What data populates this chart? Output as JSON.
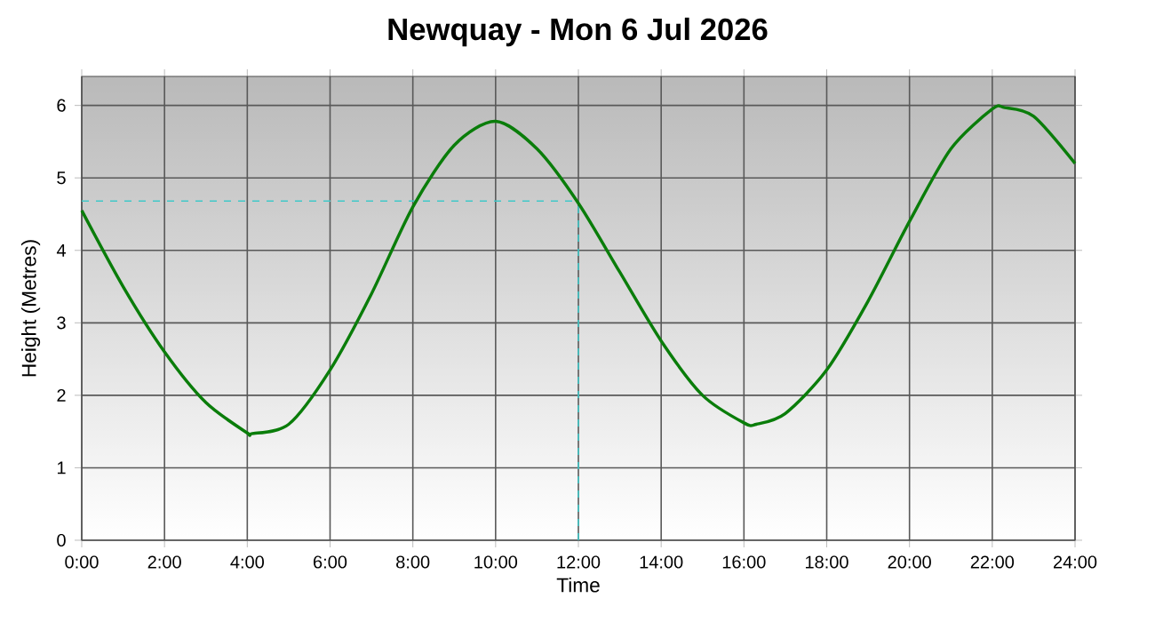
{
  "chart_data": {
    "type": "line",
    "title": "Newquay - Mon 6 Jul 2026",
    "xlabel": "Time",
    "ylabel": "Height (Metres)",
    "x": [
      0,
      1,
      2,
      3,
      4,
      4.1,
      5,
      6,
      7,
      8,
      9,
      10,
      11,
      12,
      13,
      14,
      15,
      16,
      16.3,
      17,
      18,
      19,
      20,
      21,
      22,
      22.3,
      23,
      24
    ],
    "series": [
      {
        "color": "#0a7d0a",
        "values": [
          4.55,
          3.5,
          2.6,
          1.9,
          1.48,
          1.47,
          1.6,
          2.35,
          3.4,
          4.6,
          5.45,
          5.78,
          5.4,
          4.65,
          3.7,
          2.75,
          2.0,
          1.62,
          1.6,
          1.75,
          2.35,
          3.3,
          4.4,
          5.4,
          5.95,
          5.97,
          5.85,
          5.2
        ]
      }
    ],
    "xlim": [
      0,
      24
    ],
    "ylim": [
      0,
      6.4
    ],
    "xticks": [
      {
        "value": 0,
        "label": "0:00"
      },
      {
        "value": 2,
        "label": "2:00"
      },
      {
        "value": 4,
        "label": "4:00"
      },
      {
        "value": 6,
        "label": "6:00"
      },
      {
        "value": 8,
        "label": "8:00"
      },
      {
        "value": 10,
        "label": "10:00"
      },
      {
        "value": 12,
        "label": "12:00"
      },
      {
        "value": 14,
        "label": "14:00"
      },
      {
        "value": 16,
        "label": "16:00"
      },
      {
        "value": 18,
        "label": "18:00"
      },
      {
        "value": 20,
        "label": "20:00"
      },
      {
        "value": 22,
        "label": "22:00"
      },
      {
        "value": 24,
        "label": "24:00"
      }
    ],
    "yticks": [
      0,
      1,
      2,
      3,
      4,
      5,
      6
    ],
    "ref_lines": [
      {
        "axis": "x",
        "value": 12,
        "color": "#40c8c8",
        "line_style": "dashed"
      },
      {
        "axis": "y",
        "value": 4.68,
        "color": "#40c8c8",
        "line_style": "dashed"
      }
    ],
    "grid": true,
    "marker": "none",
    "line_style": "solid"
  }
}
